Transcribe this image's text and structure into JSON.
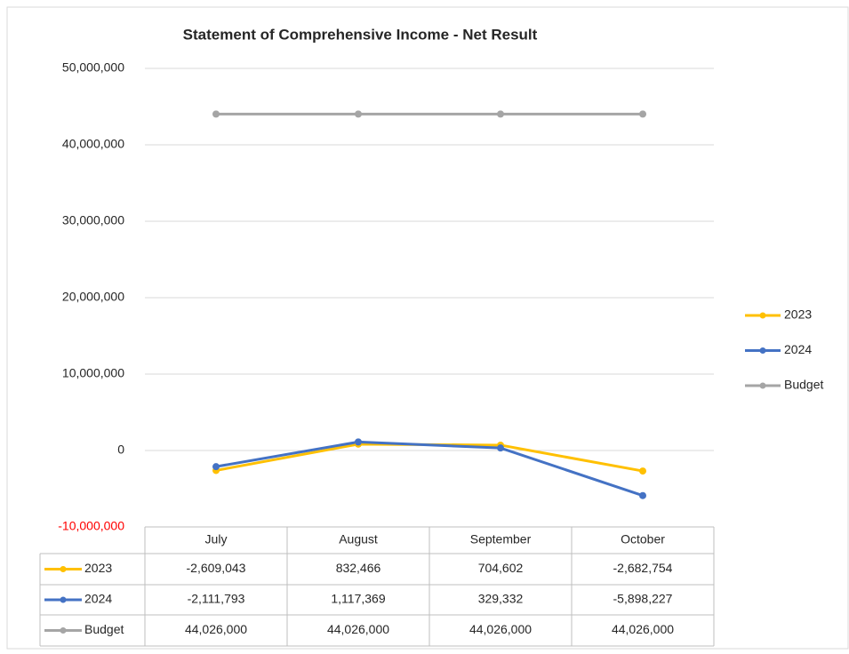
{
  "chart_data": {
    "type": "line",
    "title": "Statement of Comprehensive Income - Net Result",
    "categories": [
      "July",
      "August",
      "September",
      "October"
    ],
    "series": [
      {
        "name": "2023",
        "color": "#ffc000",
        "values": [
          -2609043,
          832466,
          704602,
          -2682754
        ],
        "value_labels": [
          "-2,609,043",
          "832,466",
          "704,602",
          "-2,682,754"
        ]
      },
      {
        "name": "2024",
        "color": "#4472c4",
        "values": [
          -2111793,
          1117369,
          329332,
          -5898227
        ],
        "value_labels": [
          "-2,111,793",
          "1,117,369",
          "329,332",
          "-5,898,227"
        ]
      },
      {
        "name": "Budget",
        "color": "#a5a5a5",
        "values": [
          44026000,
          44026000,
          44026000,
          44026000
        ],
        "value_labels": [
          "44,026,000",
          "44,026,000",
          "44,026,000",
          "44,026,000"
        ]
      }
    ],
    "ylim": [
      -10000000,
      50000000
    ],
    "yticks": [
      {
        "value": -10000000,
        "label": "-10,000,000"
      },
      0,
      {
        "value": 10000000,
        "label": "10,000,000"
      },
      {
        "value": 20000000,
        "label": "20,000,000"
      },
      {
        "value": 30000000,
        "label": "30,000,000"
      },
      {
        "value": 40000000,
        "label": "40,000,000"
      },
      {
        "value": 50000000,
        "label": "50,000,000"
      }
    ],
    "negative_tick_color": "#ff0000",
    "grid": true,
    "legend": "right",
    "data_table": true
  }
}
